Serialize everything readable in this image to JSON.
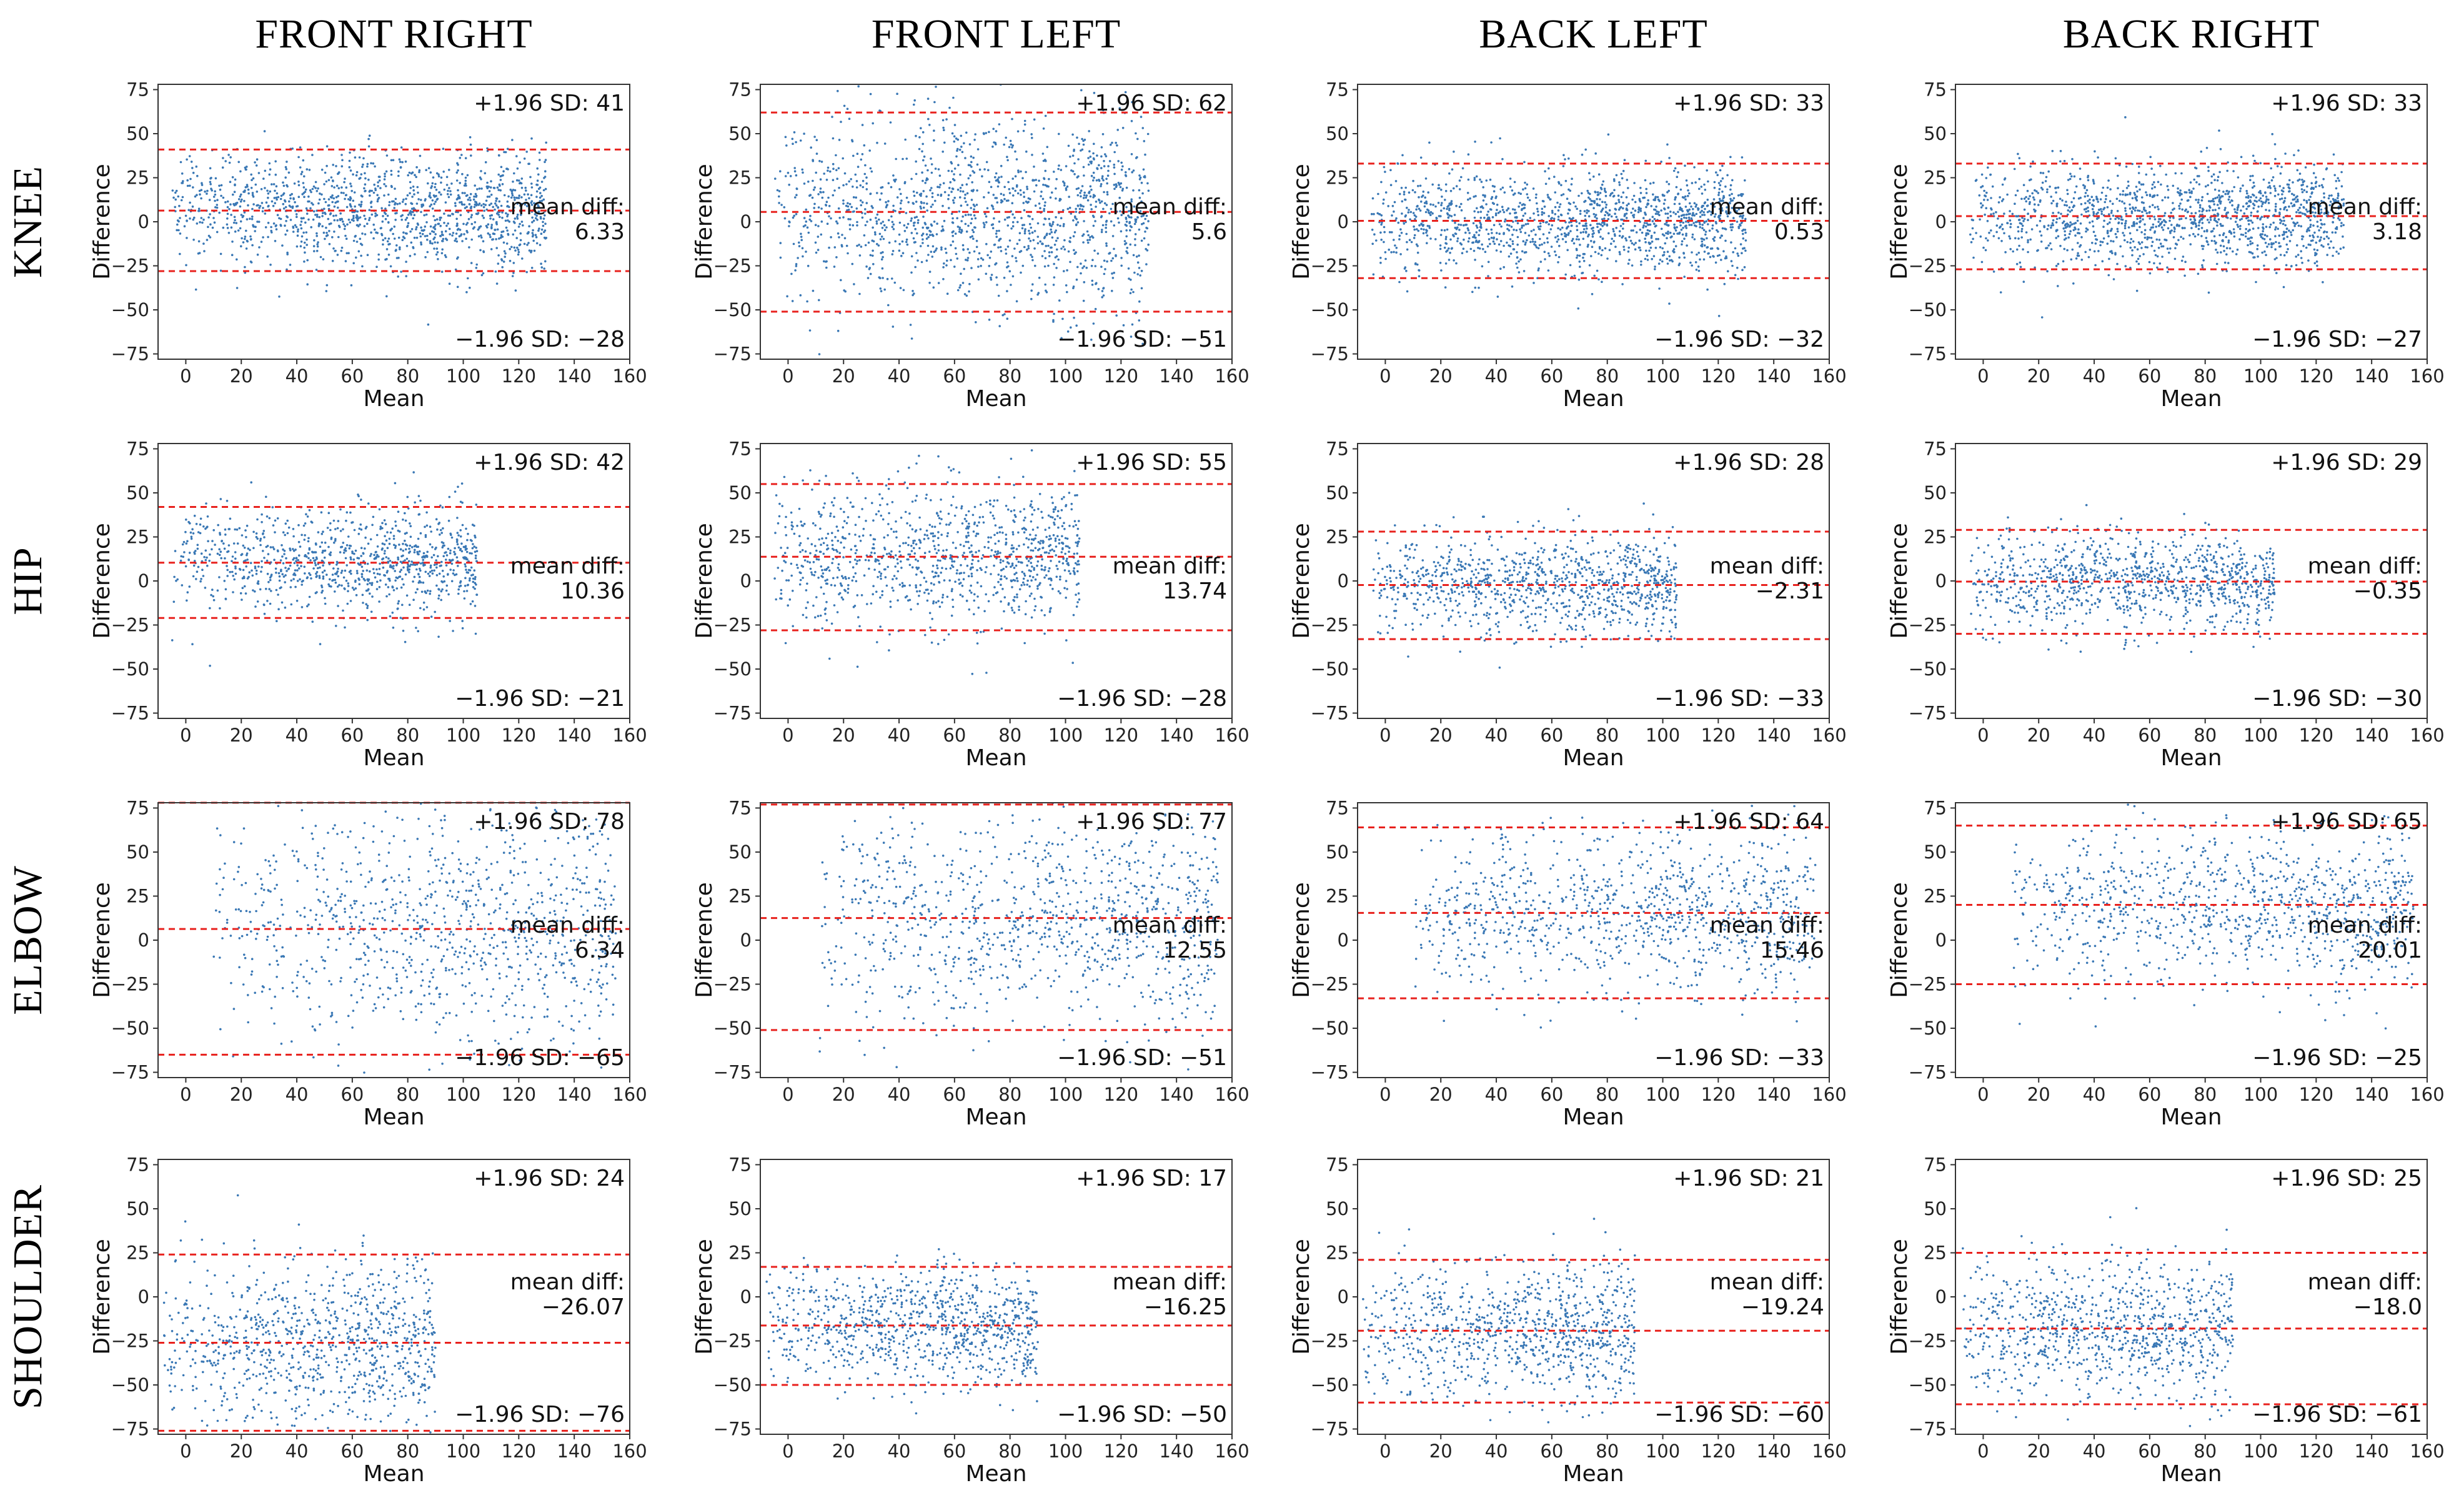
{
  "figure": {
    "point_color": "#3a78b5",
    "line_color": "#e8211d",
    "column_titles": [
      "FRONT RIGHT",
      "FRONT LEFT",
      "BACK LEFT",
      "BACK RIGHT"
    ],
    "row_titles": [
      "KNEE",
      "HIP",
      "ELBOW",
      "SHOULDER"
    ]
  },
  "chart_data": {
    "type": "scatter",
    "kind": "Bland-Altman grid",
    "xlabel": "Mean",
    "ylabel": "Difference",
    "xlim": [
      -10,
      160
    ],
    "ylim": [
      -78,
      78
    ],
    "xticks": [
      "0",
      "20",
      "40",
      "60",
      "80",
      "100",
      "120",
      "140",
      "160"
    ],
    "yticks": [
      "75",
      "50",
      "25",
      "0",
      "−25",
      "−50",
      "−75"
    ],
    "mean_diff_label": "mean diff:",
    "upper_label_prefix": "+1.96 SD: ",
    "lower_label_prefix": "−1.96 SD: ",
    "panels": [
      {
        "row": "KNEE",
        "col": "FRONT RIGHT",
        "upper": 41,
        "mean": 6.33,
        "lower": -28,
        "upper_text": "41",
        "mean_text": "6.33",
        "lower_text": "−28"
      },
      {
        "row": "KNEE",
        "col": "FRONT LEFT",
        "upper": 62,
        "mean": 5.6,
        "lower": -51,
        "upper_text": "62",
        "mean_text": "5.6",
        "lower_text": "−51"
      },
      {
        "row": "KNEE",
        "col": "BACK LEFT",
        "upper": 33,
        "mean": 0.53,
        "lower": -32,
        "upper_text": "33",
        "mean_text": "0.53",
        "lower_text": "−32"
      },
      {
        "row": "KNEE",
        "col": "BACK RIGHT",
        "upper": 33,
        "mean": 3.18,
        "lower": -27,
        "upper_text": "33",
        "mean_text": "3.18",
        "lower_text": "−27"
      },
      {
        "row": "HIP",
        "col": "FRONT RIGHT",
        "upper": 42,
        "mean": 10.36,
        "lower": -21,
        "upper_text": "42",
        "mean_text": "10.36",
        "lower_text": "−21"
      },
      {
        "row": "HIP",
        "col": "FRONT LEFT",
        "upper": 55,
        "mean": 13.74,
        "lower": -28,
        "upper_text": "55",
        "mean_text": "13.74",
        "lower_text": "−28"
      },
      {
        "row": "HIP",
        "col": "BACK LEFT",
        "upper": 28,
        "mean": -2.31,
        "lower": -33,
        "upper_text": "28",
        "mean_text": "−2.31",
        "lower_text": "−33"
      },
      {
        "row": "HIP",
        "col": "BACK RIGHT",
        "upper": 29,
        "mean": -0.35,
        "lower": -30,
        "upper_text": "29",
        "mean_text": "−0.35",
        "lower_text": "−30"
      },
      {
        "row": "ELBOW",
        "col": "FRONT RIGHT",
        "upper": 78,
        "mean": 6.34,
        "lower": -65,
        "upper_text": "78",
        "mean_text": "6.34",
        "lower_text": "−65"
      },
      {
        "row": "ELBOW",
        "col": "FRONT LEFT",
        "upper": 77,
        "mean": 12.55,
        "lower": -51,
        "upper_text": "77",
        "mean_text": "12.55",
        "lower_text": "−51"
      },
      {
        "row": "ELBOW",
        "col": "BACK LEFT",
        "upper": 64,
        "mean": 15.46,
        "lower": -33,
        "upper_text": "64",
        "mean_text": "15.46",
        "lower_text": "−33"
      },
      {
        "row": "ELBOW",
        "col": "BACK RIGHT",
        "upper": 65,
        "mean": 20.01,
        "lower": -25,
        "upper_text": "65",
        "mean_text": "20.01",
        "lower_text": "−25"
      },
      {
        "row": "SHOULDER",
        "col": "FRONT RIGHT",
        "upper": 24,
        "mean": -26.07,
        "lower": -76,
        "upper_text": "24",
        "mean_text": "−26.07",
        "lower_text": "−76"
      },
      {
        "row": "SHOULDER",
        "col": "FRONT LEFT",
        "upper": 17,
        "mean": -16.25,
        "lower": -50,
        "upper_text": "17",
        "mean_text": "−16.25",
        "lower_text": "−50"
      },
      {
        "row": "SHOULDER",
        "col": "BACK LEFT",
        "upper": 21,
        "mean": -19.24,
        "lower": -60,
        "upper_text": "21",
        "mean_text": "−19.24",
        "lower_text": "−60"
      },
      {
        "row": "SHOULDER",
        "col": "BACK RIGHT",
        "upper": 25,
        "mean": -18.0,
        "lower": -61,
        "upper_text": "25",
        "mean_text": "−18.0",
        "lower_text": "−61"
      }
    ]
  }
}
